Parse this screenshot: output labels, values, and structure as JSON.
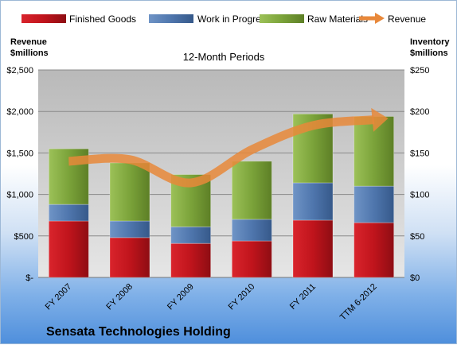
{
  "chart_data": {
    "type": "bar",
    "stacked": true,
    "subtitle": "12-Month Periods",
    "company": "Sensata Technologies Holding",
    "categories": [
      "FY 2007",
      "FY 2008",
      "FY 2009",
      "FY 2010",
      "FY 2011",
      "TTM 6-2012"
    ],
    "left_axis": {
      "label_line1": "Revenue",
      "label_line2": "$millions",
      "range": [
        0,
        2500
      ],
      "ticks": [
        {
          "value": 0,
          "label": "$-"
        },
        {
          "value": 500,
          "label": "$500"
        },
        {
          "value": 1000,
          "label": "$1,000"
        },
        {
          "value": 1500,
          "label": "$1,500"
        },
        {
          "value": 2000,
          "label": "$2,000"
        },
        {
          "value": 2500,
          "label": "$2,500"
        }
      ]
    },
    "right_axis": {
      "label_line1": "Inventory",
      "label_line2": "$millions",
      "range": [
        0,
        250
      ],
      "ticks": [
        {
          "value": 0,
          "label": "$0"
        },
        {
          "value": 50,
          "label": "$50"
        },
        {
          "value": 100,
          "label": "$100"
        },
        {
          "value": 150,
          "label": "$150"
        },
        {
          "value": 200,
          "label": "$200"
        },
        {
          "value": 250,
          "label": "$250"
        }
      ]
    },
    "series": [
      {
        "name": "Finished Goods",
        "axis": "right",
        "color": "#c0141c",
        "values": [
          68,
          48,
          41,
          44,
          69,
          66
        ]
      },
      {
        "name": "Work in Progress",
        "axis": "right",
        "color": "#4f76ad",
        "values": [
          20,
          20,
          20,
          26,
          45,
          44
        ]
      },
      {
        "name": "Raw Materials",
        "axis": "right",
        "color": "#7ba33a",
        "values": [
          67,
          70,
          63,
          70,
          83,
          84
        ]
      },
      {
        "name": "Revenue",
        "axis": "left",
        "type": "line",
        "color": "#e8883a",
        "values": [
          1400,
          1420,
          1140,
          1540,
          1830,
          1900
        ]
      }
    ],
    "grid": true,
    "legend_position": "top"
  }
}
